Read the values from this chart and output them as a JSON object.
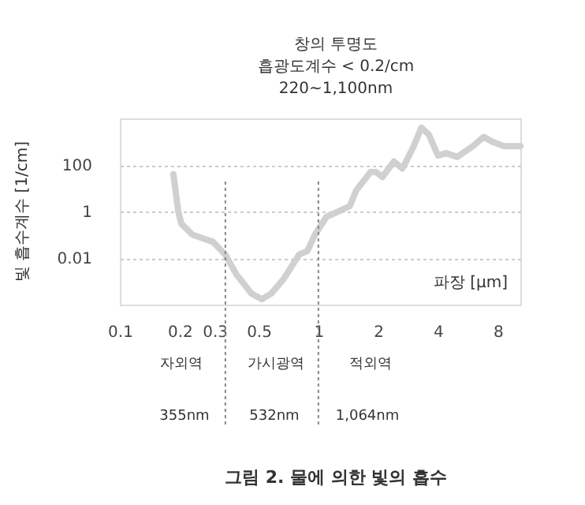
{
  "chart_data": {
    "type": "line",
    "title": "창의 투명도",
    "subtitle": "흡광도계수 < 0.2/cm\n220~1,100nm",
    "xlabel": "파장 [μm]",
    "ylabel": "빛 흡수계수 [1/cm]",
    "log": "xy",
    "xlim": [
      0.1,
      10.4
    ],
    "ylim": [
      0.0001,
      10000
    ],
    "xticks": [
      0.1,
      0.2,
      0.3,
      0.5,
      1,
      2,
      4,
      8
    ],
    "yticks": [
      0.01,
      1,
      100
    ],
    "grid": "y",
    "marker": "none",
    "line_style": "solid",
    "ref_lines": [
      {
        "axis": "x",
        "value": 0.34,
        "label": null,
        "color": "#888888",
        "line_style": "dotted"
      },
      {
        "axis": "x",
        "value": 1,
        "label": null,
        "color": "#888888",
        "line_style": "dotted"
      }
    ],
    "annotations": [
      "자외역",
      "가시광역",
      "적외역",
      "355nm",
      "532nm",
      "1,064nm",
      "그림 2. 물에 의한 빛의 흡수"
    ],
    "series": [
      {
        "color": "#d0d0d0",
        "x": [
          0.186,
          0.197,
          0.204,
          0.232,
          0.294,
          0.34,
          0.386,
          0.46,
          0.52,
          0.58,
          0.67,
          0.8,
          0.88,
          0.96,
          1.1,
          1.26,
          1.44,
          1.55,
          1.67,
          1.83,
          1.95,
          2.1,
          2.4,
          2.65,
          3.0,
          3.3,
          3.6,
          4.0,
          4.4,
          5.0,
          6.0,
          6.8,
          7.5,
          8.6,
          10.4
        ],
        "values": [
          40,
          1,
          0.3,
          0.1,
          0.05,
          0.014,
          0.002,
          0.0003,
          0.00017,
          0.0003,
          0.0013,
          0.014,
          0.02,
          0.1,
          0.6,
          1,
          1.7,
          8,
          18,
          50,
          50,
          30,
          140,
          70,
          560,
          4000,
          2000,
          250,
          320,
          220,
          640,
          1600,
          1000,
          640,
          640
        ]
      }
    ]
  }
}
